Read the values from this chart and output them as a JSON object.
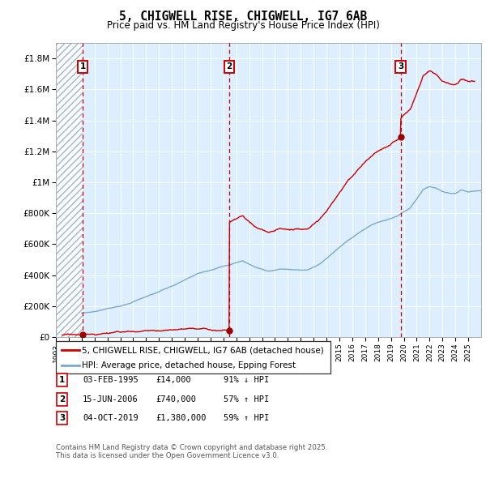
{
  "title": "5, CHIGWELL RISE, CHIGWELL, IG7 6AB",
  "subtitle": "Price paid vs. HM Land Registry's House Price Index (HPI)",
  "sales": [
    {
      "num": 1,
      "date": "03-FEB-1995",
      "year": 1995.09,
      "price": 14000,
      "hpi_pct": "91% ↓ HPI"
    },
    {
      "num": 2,
      "date": "15-JUN-2006",
      "year": 2006.45,
      "price": 740000,
      "hpi_pct": "57% ↑ HPI"
    },
    {
      "num": 3,
      "date": "04-OCT-2019",
      "year": 2019.75,
      "price": 1380000,
      "hpi_pct": "59% ↑ HPI"
    }
  ],
  "legend_line1": "5, CHIGWELL RISE, CHIGWELL, IG7 6AB (detached house)",
  "legend_line2": "HPI: Average price, detached house, Epping Forest",
  "footer_line1": "Contains HM Land Registry data © Crown copyright and database right 2025.",
  "footer_line2": "This data is licensed under the Open Government Licence v3.0.",
  "ymax": 1900000,
  "xmin": 1993,
  "xmax": 2026,
  "red_color": "#cc0000",
  "blue_color": "#7aaac8",
  "bg_color": "#ddeeff",
  "hatch_color": "#bbccdd",
  "sale_dot_color": "#990000"
}
